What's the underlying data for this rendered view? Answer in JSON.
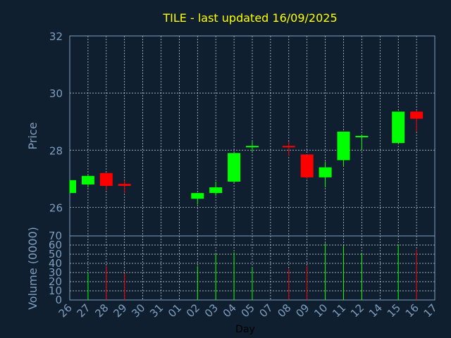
{
  "chart_data": [
    {
      "type": "candlestick",
      "title": "TILE - last updated 16/09/2025",
      "ylabel": "Price",
      "ylim": [
        25,
        32
      ],
      "yticks": [
        "26",
        "28",
        "30",
        "32"
      ],
      "grid": true,
      "colors": {
        "up": "#00ff00",
        "down": "#ff0000",
        "background": "#0f1f2f",
        "title": "#ffff00",
        "axis": "#7f9fbf"
      },
      "candles": [
        {
          "day": "26",
          "open": 26.5,
          "high": 26.95,
          "low": 26.5,
          "close": 26.95
        },
        {
          "day": "27",
          "open": 26.8,
          "high": 27.15,
          "low": 26.7,
          "close": 27.1
        },
        {
          "day": "28",
          "open": 27.2,
          "high": 27.2,
          "low": 26.6,
          "close": 26.75
        },
        {
          "day": "29",
          "open": 26.82,
          "high": 26.95,
          "low": 26.5,
          "close": 26.75
        },
        {
          "day": "02",
          "open": 26.3,
          "high": 26.5,
          "low": 26.1,
          "close": 26.5
        },
        {
          "day": "03",
          "open": 26.5,
          "high": 26.9,
          "low": 26.4,
          "close": 26.7
        },
        {
          "day": "04",
          "open": 26.9,
          "high": 27.9,
          "low": 26.85,
          "close": 27.9
        },
        {
          "day": "05",
          "open": 28.15,
          "high": 28.3,
          "low": 27.95,
          "close": 28.15
        },
        {
          "day": "08",
          "open": 28.15,
          "high": 28.3,
          "low": 27.8,
          "close": 28.1
        },
        {
          "day": "09",
          "open": 27.85,
          "high": 27.85,
          "low": 27.0,
          "close": 27.05
        },
        {
          "day": "10",
          "open": 27.05,
          "high": 27.6,
          "low": 26.7,
          "close": 27.4
        },
        {
          "day": "11",
          "open": 27.65,
          "high": 28.65,
          "low": 27.45,
          "close": 28.65
        },
        {
          "day": "12",
          "open": 28.45,
          "high": 28.55,
          "low": 28.0,
          "close": 28.5
        },
        {
          "day": "15",
          "open": 28.25,
          "high": 29.35,
          "low": 28.25,
          "close": 29.35
        },
        {
          "day": "16",
          "open": 29.35,
          "high": 29.4,
          "low": 28.65,
          "close": 29.1
        }
      ]
    },
    {
      "type": "bar",
      "ylabel": "Volume (0000)",
      "xlabel": "Day",
      "ylim": [
        0,
        70
      ],
      "yticks": [
        "0",
        "10",
        "20",
        "30",
        "40",
        "50",
        "60",
        "70"
      ],
      "grid": true,
      "categories": [
        "26",
        "27",
        "28",
        "29",
        "30",
        "31",
        "01",
        "02",
        "03",
        "04",
        "05",
        "07",
        "08",
        "09",
        "10",
        "11",
        "12",
        "14",
        "15",
        "16",
        "17"
      ],
      "bars": [
        {
          "day": "27",
          "value": 30,
          "color": "#00ff00"
        },
        {
          "day": "28",
          "value": 37,
          "color": "#ff0000"
        },
        {
          "day": "29",
          "value": 29,
          "color": "#ff0000"
        },
        {
          "day": "02",
          "value": 37,
          "color": "#00ff00"
        },
        {
          "day": "03",
          "value": 51,
          "color": "#00ff00"
        },
        {
          "day": "04",
          "value": 52,
          "color": "#00ff00"
        },
        {
          "day": "05",
          "value": 35,
          "color": "#00ff00"
        },
        {
          "day": "08",
          "value": 34,
          "color": "#ff0000"
        },
        {
          "day": "09",
          "value": 37,
          "color": "#ff0000"
        },
        {
          "day": "10",
          "value": 62,
          "color": "#00ff00"
        },
        {
          "day": "11",
          "value": 59,
          "color": "#00ff00"
        },
        {
          "day": "12",
          "value": 51,
          "color": "#00ff00"
        },
        {
          "day": "15",
          "value": 60,
          "color": "#00ff00"
        },
        {
          "day": "16",
          "value": 55,
          "color": "#ff0000"
        }
      ]
    }
  ]
}
